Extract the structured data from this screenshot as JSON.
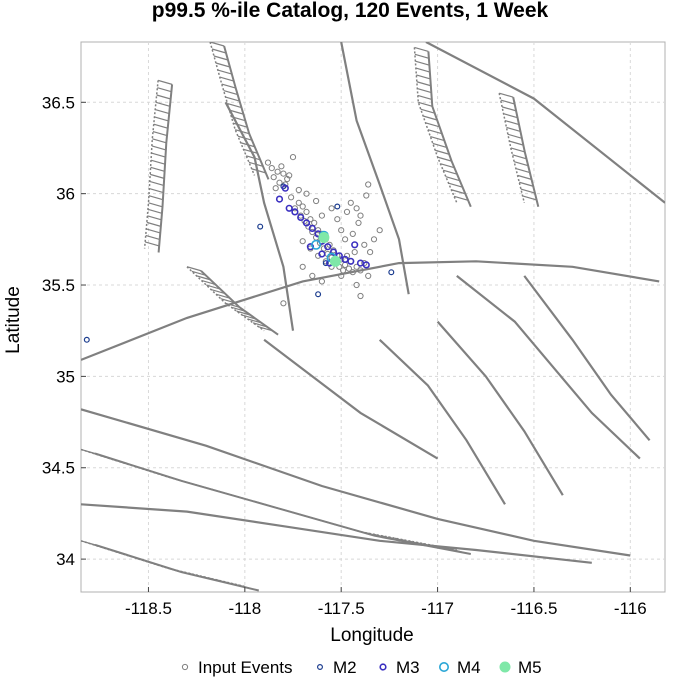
{
  "chart_data": {
    "type": "scatter",
    "title": "p99.5 %-ile Catalog, 120 Events, 1 Week",
    "xlabel": "Longitude",
    "ylabel": "Latitude",
    "xlim": [
      -118.85,
      -115.82
    ],
    "ylim": [
      33.82,
      36.83
    ],
    "xticks": [
      {
        "value": -118.5,
        "label": "-118.5"
      },
      {
        "value": -118,
        "label": "-118"
      },
      {
        "value": -117.5,
        "label": "-117.5"
      },
      {
        "value": -117,
        "label": "-117"
      },
      {
        "value": -116.5,
        "label": "-116.5"
      },
      {
        "value": -116,
        "label": "-116"
      }
    ],
    "yticks": [
      {
        "value": 34,
        "label": "34"
      },
      {
        "value": 34.5,
        "label": "34.5"
      },
      {
        "value": 35,
        "label": "35"
      },
      {
        "value": 35.5,
        "label": "35.5"
      },
      {
        "value": 36,
        "label": "36"
      },
      {
        "value": 36.5,
        "label": "36.5"
      }
    ],
    "grid": true,
    "legend_position": "bottom",
    "legend": [
      {
        "name": "Input Events",
        "color": "#808080",
        "marker": "open-circle-small"
      },
      {
        "name": "M2",
        "color": "#1c3d8f",
        "marker": "open-circle"
      },
      {
        "name": "M3",
        "color": "#3a2fc0",
        "marker": "open-circle"
      },
      {
        "name": "M4",
        "color": "#2aa6d6",
        "marker": "open-circle-large"
      },
      {
        "name": "M5",
        "color": "#7fe8a8",
        "marker": "filled-circle"
      }
    ],
    "series": [
      {
        "name": "Input Events",
        "color": "#808080",
        "points": [
          [
            -117.83,
            36.12
          ],
          [
            -117.8,
            36.11
          ],
          [
            -117.85,
            36.09
          ],
          [
            -117.78,
            36.08
          ],
          [
            -117.82,
            36.06
          ],
          [
            -117.79,
            36.05
          ],
          [
            -117.86,
            36.14
          ],
          [
            -117.81,
            36.15
          ],
          [
            -117.77,
            36.1
          ],
          [
            -117.84,
            36.03
          ],
          [
            -117.76,
            35.98
          ],
          [
            -117.72,
            35.95
          ],
          [
            -117.74,
            35.92
          ],
          [
            -117.7,
            35.93
          ],
          [
            -117.68,
            35.9
          ],
          [
            -117.71,
            35.88
          ],
          [
            -117.66,
            35.86
          ],
          [
            -117.69,
            35.85
          ],
          [
            -117.64,
            35.84
          ],
          [
            -117.67,
            35.82
          ],
          [
            -117.62,
            35.8
          ],
          [
            -117.65,
            35.79
          ],
          [
            -117.6,
            35.78
          ],
          [
            -117.63,
            35.76
          ],
          [
            -117.58,
            35.75
          ],
          [
            -117.61,
            35.73
          ],
          [
            -117.56,
            35.72
          ],
          [
            -117.59,
            35.7
          ],
          [
            -117.54,
            35.69
          ],
          [
            -117.57,
            35.67
          ],
          [
            -117.52,
            35.66
          ],
          [
            -117.55,
            35.65
          ],
          [
            -117.5,
            35.64
          ],
          [
            -117.53,
            35.62
          ],
          [
            -117.48,
            35.61
          ],
          [
            -117.51,
            35.6
          ],
          [
            -117.46,
            35.59
          ],
          [
            -117.49,
            35.58
          ],
          [
            -117.44,
            35.57
          ],
          [
            -117.42,
            35.6
          ],
          [
            -117.4,
            35.58
          ],
          [
            -117.38,
            35.62
          ],
          [
            -117.45,
            35.63
          ],
          [
            -117.47,
            35.66
          ],
          [
            -117.43,
            35.68
          ],
          [
            -117.55,
            35.6
          ],
          [
            -117.58,
            35.63
          ],
          [
            -117.62,
            35.66
          ],
          [
            -117.66,
            35.7
          ],
          [
            -117.7,
            35.74
          ],
          [
            -117.47,
            35.9
          ],
          [
            -117.45,
            35.95
          ],
          [
            -117.42,
            35.92
          ],
          [
            -117.4,
            35.88
          ],
          [
            -117.37,
            35.99
          ],
          [
            -117.36,
            36.05
          ],
          [
            -117.5,
            35.8
          ],
          [
            -117.48,
            35.75
          ],
          [
            -117.44,
            35.78
          ],
          [
            -117.41,
            35.84
          ],
          [
            -117.55,
            35.92
          ],
          [
            -117.52,
            35.86
          ],
          [
            -117.6,
            35.88
          ],
          [
            -117.63,
            35.96
          ],
          [
            -117.68,
            36.0
          ],
          [
            -117.72,
            36.02
          ],
          [
            -117.88,
            36.17
          ],
          [
            -117.75,
            36.2
          ],
          [
            -117.7,
            35.6
          ],
          [
            -117.65,
            35.55
          ],
          [
            -117.38,
            35.72
          ],
          [
            -117.35,
            35.68
          ],
          [
            -117.33,
            35.75
          ],
          [
            -117.3,
            35.8
          ],
          [
            -117.42,
            35.5
          ],
          [
            -117.4,
            35.44
          ],
          [
            -117.8,
            35.4
          ],
          [
            -117.6,
            35.52
          ],
          [
            -117.5,
            35.55
          ],
          [
            -117.36,
            35.55
          ]
        ]
      },
      {
        "name": "M2",
        "color": "#1c3d8f",
        "points": [
          [
            -118.82,
            35.2
          ],
          [
            -117.92,
            35.82
          ],
          [
            -117.62,
            35.45
          ],
          [
            -117.24,
            35.57
          ],
          [
            -117.8,
            36.04
          ],
          [
            -117.52,
            35.93
          ],
          [
            -117.58,
            35.62
          ]
        ]
      },
      {
        "name": "M3",
        "color": "#3a2fc0",
        "points": [
          [
            -117.82,
            35.97
          ],
          [
            -117.77,
            35.92
          ],
          [
            -117.74,
            35.9
          ],
          [
            -117.71,
            35.87
          ],
          [
            -117.68,
            35.84
          ],
          [
            -117.65,
            35.81
          ],
          [
            -117.62,
            35.78
          ],
          [
            -117.6,
            35.74
          ],
          [
            -117.57,
            35.71
          ],
          [
            -117.54,
            35.68
          ],
          [
            -117.51,
            35.66
          ],
          [
            -117.48,
            35.64
          ],
          [
            -117.45,
            35.63
          ],
          [
            -117.4,
            35.62
          ],
          [
            -117.37,
            35.61
          ],
          [
            -117.43,
            35.72
          ],
          [
            -117.6,
            35.67
          ],
          [
            -117.56,
            35.62
          ],
          [
            -117.66,
            35.71
          ],
          [
            -117.79,
            36.03
          ]
        ]
      },
      {
        "name": "M4",
        "color": "#2aa6d6",
        "points": [
          [
            -117.59,
            35.77
          ],
          [
            -117.55,
            35.65
          ],
          [
            -117.63,
            35.72
          ]
        ]
      },
      {
        "name": "M5",
        "color": "#7fe8a8",
        "points": [
          [
            -117.59,
            35.76
          ],
          [
            -117.53,
            35.63
          ]
        ]
      }
    ],
    "background_layers": {
      "faults_color": "#808080",
      "solid_lines": [
        [
          [
            -118.85,
            35.09
          ],
          [
            -118.3,
            35.32
          ],
          [
            -117.7,
            35.52
          ],
          [
            -117.2,
            35.62
          ],
          [
            -116.8,
            35.63
          ],
          [
            -116.3,
            35.6
          ],
          [
            -115.85,
            35.52
          ]
        ],
        [
          [
            -118.85,
            34.82
          ],
          [
            -118.2,
            34.62
          ],
          [
            -117.6,
            34.4
          ],
          [
            -117.0,
            34.22
          ],
          [
            -116.5,
            34.1
          ],
          [
            -116.0,
            34.02
          ]
        ],
        [
          [
            -117.06,
            36.83
          ],
          [
            -116.5,
            36.52
          ],
          [
            -115.82,
            35.95
          ]
        ],
        [
          [
            -117.5,
            36.83
          ],
          [
            -117.42,
            36.4
          ],
          [
            -117.3,
            36.05
          ],
          [
            -117.2,
            35.75
          ],
          [
            -117.15,
            35.45
          ]
        ],
        [
          [
            -118.1,
            36.5
          ],
          [
            -117.95,
            36.2
          ],
          [
            -117.9,
            35.95
          ],
          [
            -117.8,
            35.6
          ],
          [
            -117.75,
            35.25
          ]
        ],
        [
          [
            -118.85,
            34.3
          ],
          [
            -118.3,
            34.26
          ],
          [
            -117.8,
            34.18
          ],
          [
            -117.3,
            34.1
          ],
          [
            -116.8,
            34.05
          ],
          [
            -116.2,
            33.98
          ]
        ],
        [
          [
            -116.9,
            35.55
          ],
          [
            -116.6,
            35.3
          ],
          [
            -116.4,
            35.05
          ],
          [
            -116.2,
            34.8
          ],
          [
            -115.95,
            34.55
          ]
        ],
        [
          [
            -117.0,
            35.3
          ],
          [
            -116.75,
            35.0
          ],
          [
            -116.55,
            34.7
          ],
          [
            -116.35,
            34.35
          ]
        ],
        [
          [
            -117.3,
            35.2
          ],
          [
            -117.05,
            34.95
          ],
          [
            -116.85,
            34.65
          ],
          [
            -116.65,
            34.3
          ]
        ],
        [
          [
            -116.55,
            35.55
          ],
          [
            -116.3,
            35.2
          ],
          [
            -116.1,
            34.9
          ],
          [
            -115.9,
            34.65
          ]
        ],
        [
          [
            -117.9,
            35.2
          ],
          [
            -117.4,
            34.8
          ],
          [
            -117.0,
            34.55
          ]
        ]
      ],
      "dotted_bands": [
        [
          [
            -118.45,
            36.62
          ],
          [
            -118.48,
            36.3
          ],
          [
            -118.5,
            35.95
          ],
          [
            -118.52,
            35.7
          ]
        ],
        [
          [
            -118.18,
            36.83
          ],
          [
            -118.12,
            36.6
          ],
          [
            -118.05,
            36.35
          ],
          [
            -117.95,
            36.1
          ]
        ],
        [
          [
            -117.12,
            36.8
          ],
          [
            -117.1,
            36.5
          ],
          [
            -117.0,
            36.2
          ],
          [
            -116.9,
            35.95
          ]
        ],
        [
          [
            -116.68,
            36.55
          ],
          [
            -116.62,
            36.25
          ],
          [
            -116.55,
            35.95
          ]
        ],
        [
          [
            -118.3,
            35.6
          ],
          [
            -118.1,
            35.4
          ],
          [
            -117.9,
            35.25
          ]
        ],
        [
          [
            -118.85,
            34.6
          ],
          [
            -118.4,
            34.45
          ],
          [
            -117.9,
            34.3
          ],
          [
            -117.4,
            34.15
          ],
          [
            -116.9,
            34.05
          ]
        ],
        [
          [
            -118.85,
            34.1
          ],
          [
            -118.4,
            33.95
          ],
          [
            -118.0,
            33.85
          ]
        ]
      ]
    }
  }
}
